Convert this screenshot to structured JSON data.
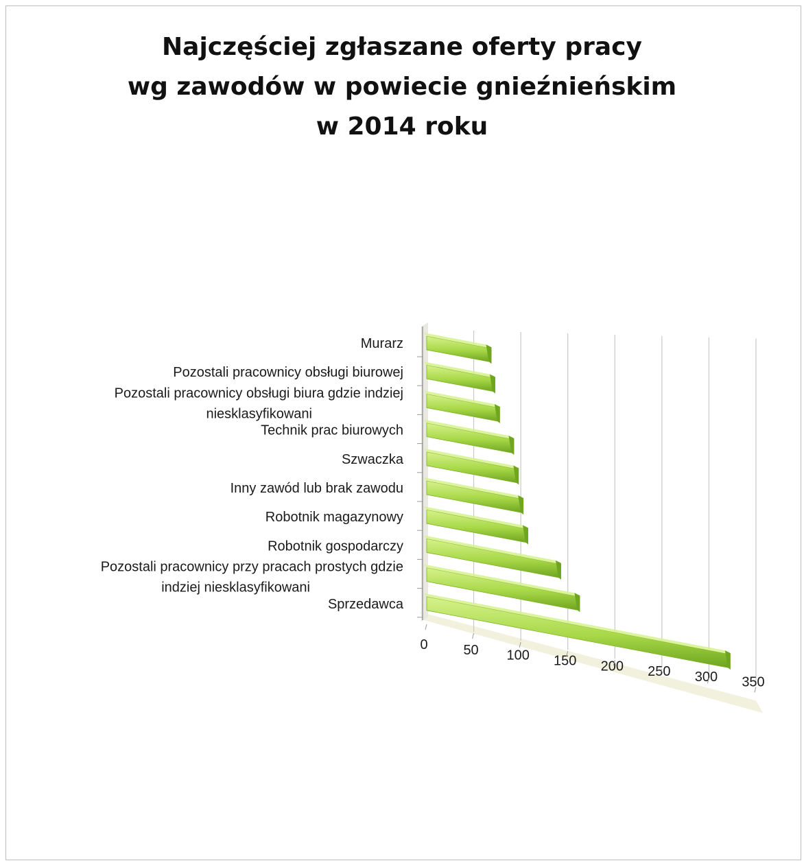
{
  "chart_data": {
    "type": "bar",
    "orientation": "horizontal",
    "title": "Najczęściej zgłaszane oferty pracy wg zawodów w powiecie gnieźnieńskim w 2014 roku",
    "title_lines": [
      "Najczęściej zgłaszane oferty pracy",
      "wg zawodów w powiecie gnieźnieńskim",
      "w 2014 roku"
    ],
    "categories": [
      "Murarz",
      "Pozostali pracownicy obsługi biurowej",
      "Pozostali pracownicy obsługi biura gdzie indziej niesklasyfikowani",
      "Technik prac biurowych",
      "Szwaczka",
      "Inny zawód lub brak zawodu",
      "Robotnik magazynowy",
      "Robotnik gospodarczy",
      "Pozostali pracownicy przy pracach prostych gdzie indziej niesklasyfikowani",
      "Sprzedawca"
    ],
    "category_label_lines": [
      [
        "Murarz"
      ],
      [
        "Pozostali pracownicy obsługi biurowej"
      ],
      [
        "Pozostali pracownicy obsługi biura gdzie indziej",
        "niesklasyfikowani"
      ],
      [
        "Technik prac biurowych"
      ],
      [
        "Szwaczka"
      ],
      [
        "Inny zawód lub brak zawodu"
      ],
      [
        "Robotnik magazynowy"
      ],
      [
        "Robotnik gospodarczy"
      ],
      [
        "Pozostali pracownicy przy pracach prostych gdzie",
        "indziej niesklasyfikowani"
      ],
      [
        "Sprzedawca"
      ]
    ],
    "values": [
      66,
      70,
      75,
      90,
      95,
      100,
      105,
      140,
      160,
      320
    ],
    "xlim": [
      0,
      350
    ],
    "xticks": [
      0,
      50,
      100,
      150,
      200,
      250,
      300,
      350
    ],
    "grid": true,
    "legend": "none",
    "style": "3d",
    "colors": {
      "bar_light": "#d6f28c",
      "bar": "#a8d848",
      "bar_dark": "#6fa51f",
      "grid": "#c8c8c8",
      "floor": "#efeed6"
    }
  }
}
